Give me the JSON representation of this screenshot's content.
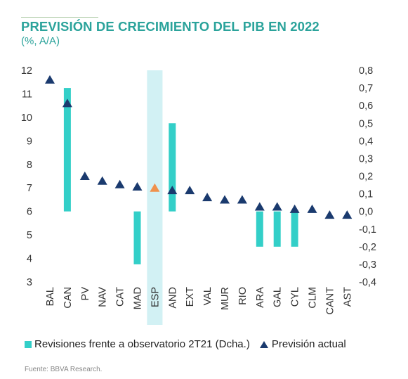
{
  "header": {
    "title": "PREVISIÓN DE CRECIMIENTO DEL PIB EN 2022",
    "subtitle": "(%, A/A)"
  },
  "footer": {
    "source": "Fuente: BBVA Research."
  },
  "colors": {
    "title": "#2ba39b",
    "bars": "#33cfc8",
    "triangles": "#1a3a6e",
    "highlight_triangle": "#f0914c",
    "highlight_band": "#d2f1f4"
  },
  "chart_data": {
    "type": "bar",
    "title": "PREVISIÓN DE CRECIMIENTO DEL PIB EN 2022",
    "subtitle": "(%, A/A)",
    "categories": [
      "BAL",
      "CAN",
      "PV",
      "NAV",
      "CAT",
      "MAD",
      "ESP",
      "AND",
      "EXT",
      "VAL",
      "MUR",
      "RIO",
      "ARA",
      "GAL",
      "CYL",
      "CLM",
      "CANT",
      "AST"
    ],
    "highlight_category": "ESP",
    "y_left": {
      "lim": [
        3,
        12
      ],
      "ticks": [
        "3",
        "4",
        "5",
        "6",
        "7",
        "8",
        "9",
        "10",
        "11",
        "12"
      ]
    },
    "y_right": {
      "lim": [
        -0.4,
        0.8
      ],
      "ticks": [
        "-0,4",
        "-0,3",
        "-0,2",
        "-0,1",
        "0,0",
        "0,1",
        "0,2",
        "0,3",
        "0,4",
        "0,5",
        "0,6",
        "0,7",
        "0,8"
      ]
    },
    "grid": false,
    "legend_position": "bottom",
    "series": [
      {
        "name": "Revisiones frente a observatorio 2T21 (Dcha.)",
        "type": "bar",
        "axis": "right",
        "values": [
          0,
          0.7,
          0,
          0,
          0,
          -0.3,
          0,
          0.5,
          0,
          0,
          0,
          0,
          -0.2,
          -0.2,
          -0.2,
          0,
          0,
          0
        ]
      },
      {
        "name": "Previsión actual",
        "type": "scatter",
        "marker": "triangle",
        "axis": "left",
        "values": [
          11.6,
          10.6,
          7.5,
          7.3,
          7.15,
          7.05,
          7.0,
          6.9,
          6.9,
          6.6,
          6.5,
          6.5,
          6.2,
          6.2,
          6.1,
          6.1,
          5.85,
          5.85
        ]
      }
    ]
  }
}
